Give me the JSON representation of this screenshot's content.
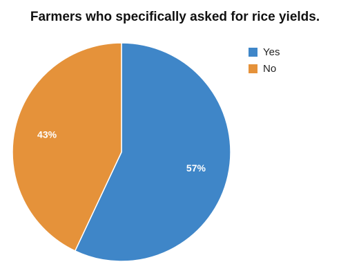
{
  "chart_data": {
    "type": "pie",
    "title": "Farmers who specifically asked for rice yields.",
    "slices": [
      {
        "label": "Yes",
        "value": 57,
        "value_label": "57%",
        "color": "#3f86c8"
      },
      {
        "label": "No",
        "value": 43,
        "value_label": "43%",
        "color": "#e5923a"
      }
    ],
    "start_angle_deg": 0,
    "direction": "clockwise",
    "legend_position": "top-right"
  }
}
